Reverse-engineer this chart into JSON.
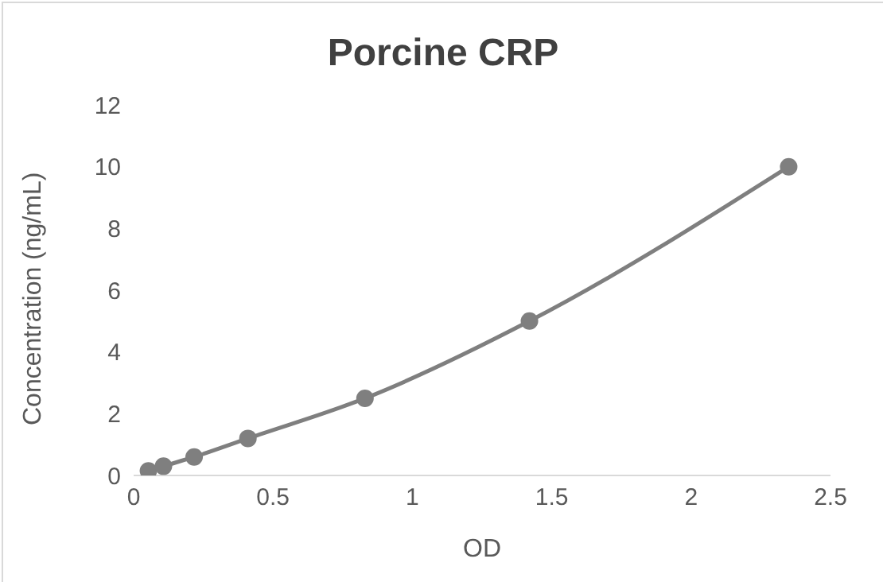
{
  "chart_data": {
    "type": "line",
    "title": "Porcine CRP",
    "xlabel": "OD",
    "ylabel": "Concentration (ng/mL)",
    "series": [
      {
        "color": "#7f7f7f",
        "x": [
          0.053,
          0.107,
          0.217,
          0.41,
          0.83,
          1.42,
          2.35
        ],
        "values": [
          0.15,
          0.3,
          0.6,
          1.2,
          2.5,
          5,
          10
        ]
      }
    ],
    "xlim": [
      0,
      2.5
    ],
    "xticks": [
      0,
      0.5,
      1,
      1.5,
      2,
      2.5
    ],
    "ylim": [
      0,
      12
    ],
    "yticks": [
      0,
      2,
      4,
      6,
      8,
      10,
      12
    ],
    "grid": false,
    "marker": "circle",
    "line_style": "solid"
  }
}
